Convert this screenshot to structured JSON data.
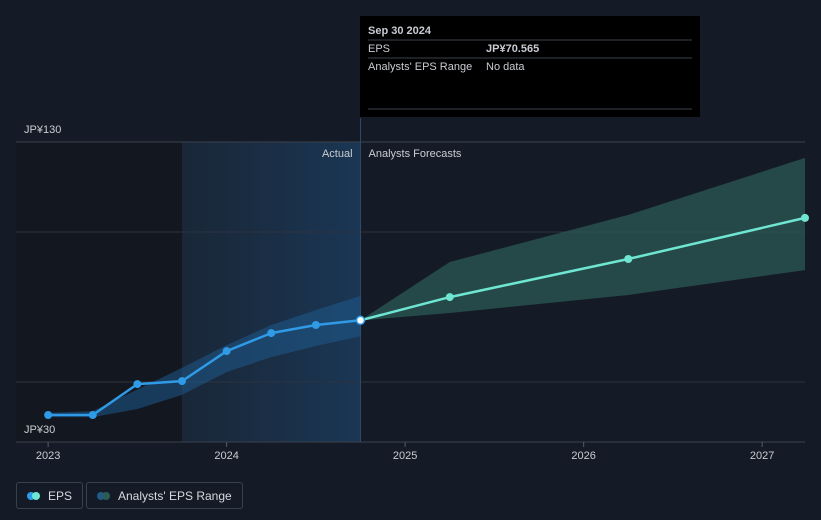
{
  "chart_data": {
    "type": "line",
    "xlim": [
      2022.82,
      2027.24
    ],
    "xticks": [
      2023,
      2024,
      2025,
      2026,
      2027
    ],
    "ylim": [
      30,
      130
    ],
    "yticks": [
      {
        "value": 30,
        "label": "JP¥30"
      },
      {
        "value": 130,
        "label": "JP¥130"
      }
    ],
    "ygrid": [
      50,
      100
    ],
    "past_year": [
      2023.75,
      2024.75
    ],
    "actual_label": "Actual",
    "forecast_label": "Analysts Forecasts",
    "eps": {
      "name": "EPS",
      "actual": {
        "color": "#2f9ae6",
        "x": [
          2023.0,
          2023.25,
          2023.5,
          2023.75,
          2024.0,
          2024.25,
          2024.5,
          2024.75
        ],
        "values": [
          39,
          39,
          49.3,
          50.3,
          60.3,
          66.3,
          69,
          70.565
        ]
      },
      "forecast": {
        "color": "#6ee6d2",
        "x": [
          2024.75,
          2025.25,
          2026.25,
          2027.24
        ],
        "values": [
          70.565,
          78.3,
          91,
          104.7
        ]
      }
    },
    "range": {
      "name": "Analysts' EPS Range",
      "actual": {
        "color": "#1f5a8c",
        "x": [
          2023.0,
          2023.25,
          2023.5,
          2023.75,
          2024.0,
          2024.25,
          2024.5,
          2024.75
        ],
        "lower": [
          38.3,
          38.3,
          41,
          45.7,
          53.3,
          58.3,
          62,
          65.3
        ],
        "upper": [
          39.7,
          40.3,
          47.5,
          54.7,
          62.3,
          69,
          74,
          78.7
        ]
      },
      "forecast": {
        "color": "#2c5b57",
        "x": [
          2024.75,
          2025.25,
          2026.25,
          2027.24
        ],
        "lower": [
          70.5,
          73,
          79,
          87.3
        ],
        "upper": [
          70.6,
          90,
          105.7,
          124.7
        ]
      }
    },
    "tooltip": {
      "date": "Sep 30 2024",
      "rows": [
        {
          "label": "EPS",
          "value": "JP¥70.565"
        },
        {
          "label": "Analysts' EPS Range",
          "value": "No data"
        }
      ]
    }
  }
}
